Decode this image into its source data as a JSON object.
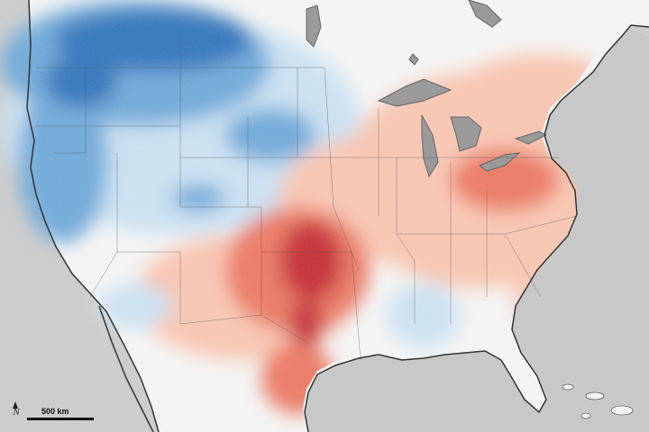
{
  "map": {
    "land_colors": {
      "cold_strong": "#2a6fb7",
      "cold": "#6aa5d6",
      "cool": "#c7dff0",
      "neutral": "#f3f3f3",
      "warm": "#f7c2ad",
      "hot": "#e9735d",
      "hot_strong": "#c2272e"
    },
    "water_color": "#c8c8c8",
    "lake_color": "#9a9a9a",
    "border_color": "#555555",
    "coast_color": "#333333"
  },
  "scale": {
    "label": "500 km",
    "north_label": "N"
  }
}
